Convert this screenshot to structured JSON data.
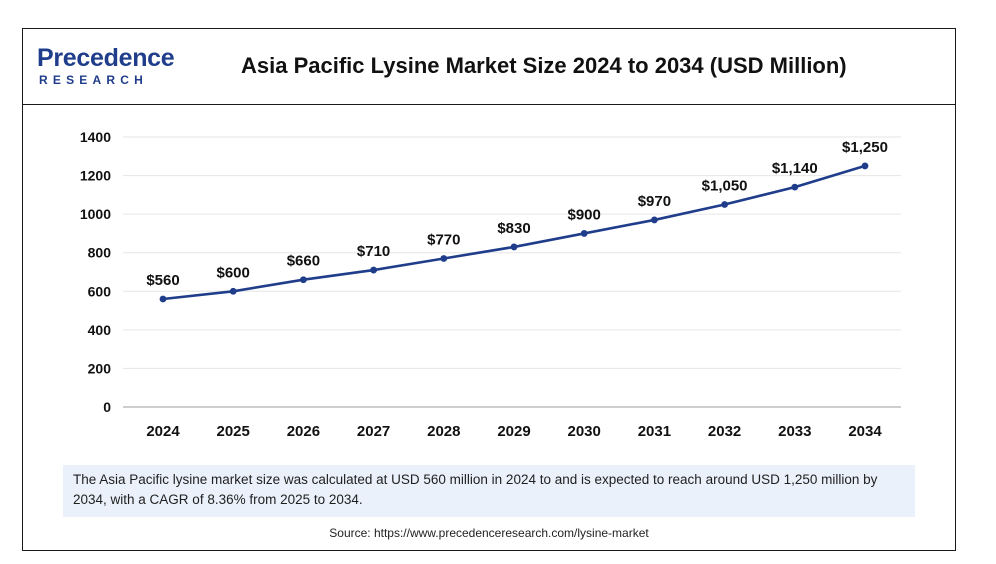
{
  "header": {
    "logo_main": "Precedence",
    "logo_sub": "RESEARCH",
    "title": "Asia Pacific Lysine Market Size 2024 to 2034 (USD Million)"
  },
  "colors": {
    "line": "#1f3d8a",
    "brand": "#1f3d8a",
    "summary_bg": "#eaf1fb"
  },
  "chart_data": {
    "type": "line",
    "title": "Asia Pacific Lysine Market Size 2024 to 2034 (USD Million)",
    "xlabel": "",
    "ylabel": "",
    "categories": [
      "2024",
      "2025",
      "2026",
      "2027",
      "2028",
      "2029",
      "2030",
      "2031",
      "2032",
      "2033",
      "2034"
    ],
    "series": [
      {
        "values": [
          560,
          600,
          660,
          710,
          770,
          830,
          900,
          970,
          1050,
          1140,
          1250
        ],
        "labels": [
          "$560",
          "$600",
          "$660",
          "$710",
          "$770",
          "$830",
          "$900",
          "$970",
          "$1,050",
          "$1,140",
          "$1,250"
        ]
      }
    ],
    "ylim": [
      0,
      1400
    ],
    "yticks": [
      0,
      200,
      400,
      600,
      800,
      1000,
      1200,
      1400
    ],
    "grid": true,
    "legend": "none"
  },
  "summary": "The Asia Pacific lysine market size was calculated at USD 560 million in 2024 to and is expected to reach around USD 1,250 million by 2034, with a CAGR of 8.36% from 2025 to 2034.",
  "source": "Source: https://www.precedenceresearch.com/lysine-market"
}
